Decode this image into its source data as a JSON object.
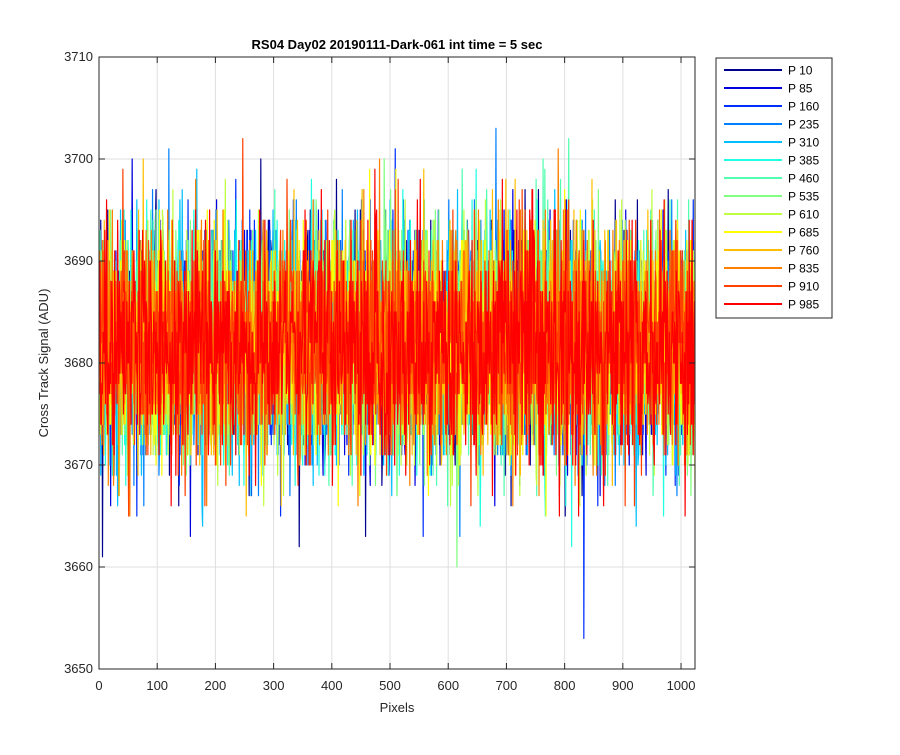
{
  "chart_data": {
    "type": "line",
    "title": "RS04 Day02 20190111-Dark-061 int time = 5 sec",
    "xlabel": "Pixels",
    "ylabel": "Cross Track Signal (ADU)",
    "xlim": [
      0,
      1024
    ],
    "ylim": [
      3650,
      3710
    ],
    "xticks": [
      0,
      100,
      200,
      300,
      400,
      500,
      600,
      700,
      800,
      900,
      1000
    ],
    "yticks": [
      3650,
      3660,
      3670,
      3680,
      3690,
      3700,
      3710
    ],
    "grid": true,
    "legend_position": "outside-top-right",
    "points_per_series": 1024,
    "series_mean": 3682,
    "series_spread": 9,
    "series": [
      {
        "name": "P 10",
        "color": "#00008f"
      },
      {
        "name": "P 85",
        "color": "#0000df"
      },
      {
        "name": "P 160",
        "color": "#0030ff"
      },
      {
        "name": "P 235",
        "color": "#0080ff"
      },
      {
        "name": "P 310",
        "color": "#00c0ff"
      },
      {
        "name": "P 385",
        "color": "#20ffdf"
      },
      {
        "name": "P 460",
        "color": "#50ffaf"
      },
      {
        "name": "P 535",
        "color": "#80ff80"
      },
      {
        "name": "P 610",
        "color": "#bfff40"
      },
      {
        "name": "P 685",
        "color": "#ffff00"
      },
      {
        "name": "P 760",
        "color": "#ffbf00"
      },
      {
        "name": "P 835",
        "color": "#ff8000"
      },
      {
        "name": "P 910",
        "color": "#ff4000"
      },
      {
        "name": "P 985",
        "color": "#ff0000"
      }
    ]
  }
}
